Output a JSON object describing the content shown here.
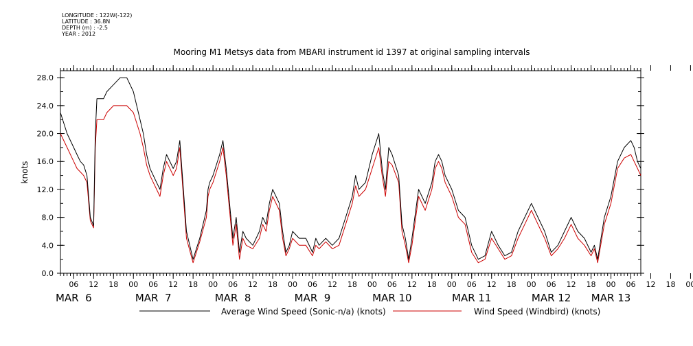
{
  "metadata": {
    "longitude": "LONGITUDE : 122W(-122)",
    "latitude": "LATITUDE : 36.8N",
    "depth": "DEPTH (m) : -2.5",
    "year": "YEAR : 2012"
  },
  "chart_data": {
    "type": "line",
    "title": "Mooring M1 Metsys data from MBARI instrument id 1397 at original sampling intervals",
    "ylabel": "knots",
    "xlabel": "",
    "ylim": [
      0,
      29
    ],
    "xlim": [
      2,
      177
    ],
    "x_unit": "hours since MAR 6 00:00 (2012)",
    "yticks": [
      "0.0",
      "4.0",
      "8.0",
      "12.0",
      "16.0",
      "20.0",
      "24.0",
      "28.0"
    ],
    "hour_ticks": [
      "06",
      "12",
      "18",
      "00",
      "06",
      "12",
      "18",
      "00",
      "06",
      "12",
      "18",
      "00",
      "06",
      "12",
      "18",
      "00",
      "06",
      "12",
      "18",
      "00",
      "06",
      "12",
      "18",
      "00",
      "06",
      "12",
      "18",
      "00",
      "06",
      "12",
      "18",
      "00"
    ],
    "date_labels": [
      "MAR  6",
      "MAR  7",
      "MAR  8",
      "MAR  9",
      "MAR 10",
      "MAR 11",
      "MAR 12",
      "MAR 13"
    ],
    "date_label_hours": [
      6,
      30,
      54,
      78,
      102,
      126,
      150,
      168
    ],
    "grid": false,
    "legend_position": "bottom",
    "series": [
      {
        "name": "Average Wind Speed (Sonic-n/a) (knots)",
        "color": "#000000",
        "x": [
          2,
          4,
          6,
          7,
          8,
          9,
          10,
          11,
          12,
          12.5,
          13,
          15,
          16,
          18,
          20,
          22,
          24,
          26,
          27,
          28,
          29,
          30,
          31,
          32,
          33,
          34,
          36,
          37,
          38,
          40,
          42,
          44,
          46,
          46.5,
          47,
          48,
          50,
          51,
          52,
          54,
          55,
          56,
          57,
          58,
          60,
          62,
          63,
          64,
          65,
          66,
          68,
          69,
          70,
          71,
          72,
          74,
          76,
          78,
          79,
          80,
          82,
          84,
          86,
          88,
          90,
          91,
          92,
          94,
          96,
          98,
          99,
          100,
          101,
          102,
          104,
          105,
          106,
          107,
          108,
          110,
          112,
          114,
          115,
          116,
          117,
          118,
          120,
          122,
          124,
          126,
          128,
          130,
          132,
          134,
          136,
          138,
          140,
          142,
          144,
          146,
          148,
          150,
          152,
          154,
          156,
          158,
          160,
          162,
          163,
          164,
          166,
          168,
          170,
          172,
          174,
          175,
          176,
          177
        ],
        "y": [
          23,
          20,
          18,
          17,
          16,
          15.5,
          14,
          8,
          6.8,
          20,
          25,
          25,
          26,
          27,
          28,
          28,
          26,
          22,
          20,
          17,
          15,
          14,
          13,
          12,
          15,
          17,
          15,
          16,
          19,
          6,
          2,
          5,
          9,
          12,
          13,
          14,
          17,
          19,
          15,
          5,
          8,
          3,
          6,
          5,
          4,
          6,
          8,
          7,
          10,
          12,
          10,
          6,
          3,
          4,
          6,
          5,
          5,
          3,
          5,
          4,
          5,
          4,
          5,
          8,
          11,
          14,
          12,
          13,
          17,
          20,
          15,
          12,
          18,
          17,
          14,
          7,
          5,
          2,
          5,
          12,
          10,
          13,
          16,
          17,
          16,
          14,
          12,
          9,
          8,
          4,
          2,
          2.5,
          6,
          4,
          2.5,
          3,
          6,
          8,
          10,
          8,
          6,
          3,
          4,
          6,
          8,
          6,
          5,
          3,
          4,
          2,
          8,
          11,
          16,
          18,
          19,
          18,
          16,
          15
        ]
      },
      {
        "name": "Wind Speed (Windbird) (knots)",
        "color": "#cc0000",
        "x": [
          2,
          4,
          6,
          7,
          8,
          9,
          10,
          11,
          12,
          12.5,
          13,
          15,
          16,
          18,
          20,
          22,
          24,
          26,
          27,
          28,
          29,
          30,
          31,
          32,
          33,
          34,
          36,
          37,
          38,
          40,
          42,
          44,
          46,
          46.5,
          47,
          48,
          50,
          51,
          52,
          54,
          55,
          56,
          57,
          58,
          60,
          62,
          63,
          64,
          65,
          66,
          68,
          69,
          70,
          71,
          72,
          74,
          76,
          78,
          79,
          80,
          82,
          84,
          86,
          88,
          90,
          91,
          92,
          94,
          96,
          98,
          99,
          100,
          101,
          102,
          104,
          105,
          106,
          107,
          108,
          110,
          112,
          114,
          115,
          116,
          117,
          118,
          120,
          122,
          124,
          126,
          128,
          130,
          132,
          134,
          136,
          138,
          140,
          142,
          144,
          146,
          148,
          150,
          152,
          154,
          156,
          158,
          160,
          162,
          163,
          164,
          166,
          168,
          170,
          172,
          174,
          175,
          176,
          177
        ],
        "y": [
          20,
          18,
          16,
          15,
          14.5,
          14,
          13,
          7.5,
          6.5,
          18,
          22,
          22,
          23,
          24,
          24,
          24,
          23,
          20,
          18,
          15.5,
          14,
          13,
          12,
          11,
          14,
          16,
          14,
          15,
          18,
          5,
          1.5,
          4.5,
          8,
          11,
          12,
          13,
          16,
          18,
          14,
          4,
          7,
          2,
          5,
          4,
          3.5,
          5,
          7,
          6,
          9,
          11,
          9,
          5,
          2.5,
          3.5,
          5,
          4,
          4,
          2.5,
          4,
          3.5,
          4.5,
          3.5,
          4,
          7,
          10,
          12.5,
          11,
          12,
          15,
          18,
          14,
          11,
          16,
          15.5,
          13,
          6,
          4,
          1.5,
          4,
          11,
          9,
          12,
          15,
          16,
          15,
          13,
          11,
          8,
          7,
          3,
          1.5,
          2,
          5,
          3.5,
          2,
          2.5,
          5,
          7,
          9,
          7,
          5,
          2.5,
          3.5,
          5,
          7,
          5,
          4,
          2.5,
          3.5,
          1.5,
          7,
          10,
          15,
          16.5,
          17,
          16,
          15,
          14
        ]
      }
    ]
  }
}
